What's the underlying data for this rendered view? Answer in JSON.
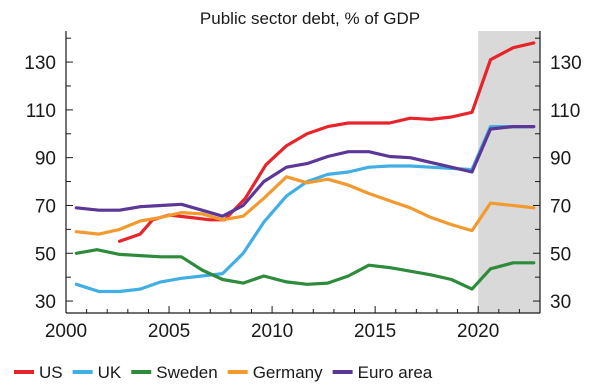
{
  "chart_data": {
    "type": "line",
    "title": "Public sector debt, % of GDP",
    "xlabel": "",
    "ylabel": "",
    "xlim": [
      2000,
      2023
    ],
    "ylim": [
      25,
      143
    ],
    "x_ticks": [
      2000,
      2005,
      2010,
      2015,
      2020
    ],
    "y_ticks": [
      30,
      50,
      70,
      90,
      110,
      130
    ],
    "shaded_region": {
      "x_start": 2020,
      "x_end": 2023,
      "color": "#d9d9d9"
    },
    "legend_position": "bottom",
    "grid": false,
    "series": [
      {
        "name": "US",
        "color": "#e8242b",
        "x": [
          2002.6,
          2003.6,
          2004.2,
          2005,
          2006,
          2007,
          2007.7,
          2008.7,
          2009.7,
          2010.7,
          2011.7,
          2012.7,
          2013.7,
          2014.7,
          2015.7,
          2016.7,
          2017.7,
          2018.7,
          2019.7,
          2020.6,
          2021.7,
          2022.7
        ],
        "y": [
          55,
          58,
          64,
          66,
          65,
          64,
          64,
          73,
          87,
          95,
          100,
          103,
          104.5,
          104.5,
          104.5,
          106.5,
          106,
          107,
          109,
          131,
          136,
          138
        ]
      },
      {
        "name": "UK",
        "color": "#41aee6",
        "x": [
          2000.5,
          2001.6,
          2002.6,
          2003.6,
          2004.6,
          2005.6,
          2006.6,
          2007.6,
          2008.6,
          2009.6,
          2010.7,
          2011.7,
          2012.7,
          2013.7,
          2014.7,
          2015.7,
          2016.7,
          2017.7,
          2018.7,
          2019.7,
          2020.6,
          2021.7,
          2022.7
        ],
        "y": [
          37,
          34,
          34,
          35,
          38,
          39.5,
          40.5,
          41.5,
          50,
          63,
          74,
          80,
          83,
          84,
          86,
          86.5,
          86.5,
          86,
          85.5,
          85,
          103,
          103,
          103
        ]
      },
      {
        "name": "Sweden",
        "color": "#2e8b3c",
        "x": [
          2000.5,
          2001.5,
          2002.6,
          2003.6,
          2004.6,
          2005.6,
          2006.6,
          2007.6,
          2008.6,
          2009.6,
          2010.7,
          2011.7,
          2012.7,
          2013.7,
          2014.7,
          2015.7,
          2016.7,
          2017.7,
          2018.7,
          2019.7,
          2020.6,
          2021.7,
          2022.7
        ],
        "y": [
          50,
          51.5,
          49.5,
          49,
          48.5,
          48.5,
          43,
          39,
          37.5,
          40.5,
          38,
          37,
          37.5,
          40.5,
          45,
          44,
          42.5,
          41,
          39,
          35,
          43.5,
          46,
          46
        ]
      },
      {
        "name": "Germany",
        "color": "#f39a2e",
        "x": [
          2000.5,
          2001.6,
          2002.6,
          2003.6,
          2004.6,
          2005.6,
          2006.6,
          2007.6,
          2008.6,
          2009.6,
          2010.7,
          2011.7,
          2012.7,
          2013.7,
          2014.7,
          2015.7,
          2016.7,
          2017.7,
          2018.7,
          2019.7,
          2020.6,
          2021.7,
          2022.7
        ],
        "y": [
          59,
          58,
          60,
          63.5,
          65,
          67,
          66.5,
          64,
          65.5,
          73,
          82,
          79.5,
          81,
          78.5,
          75,
          72,
          69,
          65,
          62,
          59.5,
          71,
          70,
          69
        ]
      },
      {
        "name": "Euro area",
        "color": "#5b3797",
        "x": [
          2000.5,
          2001.6,
          2002.6,
          2003.6,
          2004.6,
          2005.6,
          2006.6,
          2007.6,
          2008.6,
          2009.6,
          2010.7,
          2011.7,
          2012.7,
          2013.7,
          2014.7,
          2015.7,
          2016.7,
          2017.7,
          2018.7,
          2019.7,
          2020.6,
          2021.7,
          2022.7
        ],
        "y": [
          69,
          68,
          68,
          69.5,
          70,
          70.5,
          68,
          65.5,
          70,
          80,
          86,
          87.5,
          90.5,
          92.5,
          92.5,
          90.5,
          90,
          88,
          86,
          84,
          102,
          103,
          103
        ]
      }
    ]
  }
}
